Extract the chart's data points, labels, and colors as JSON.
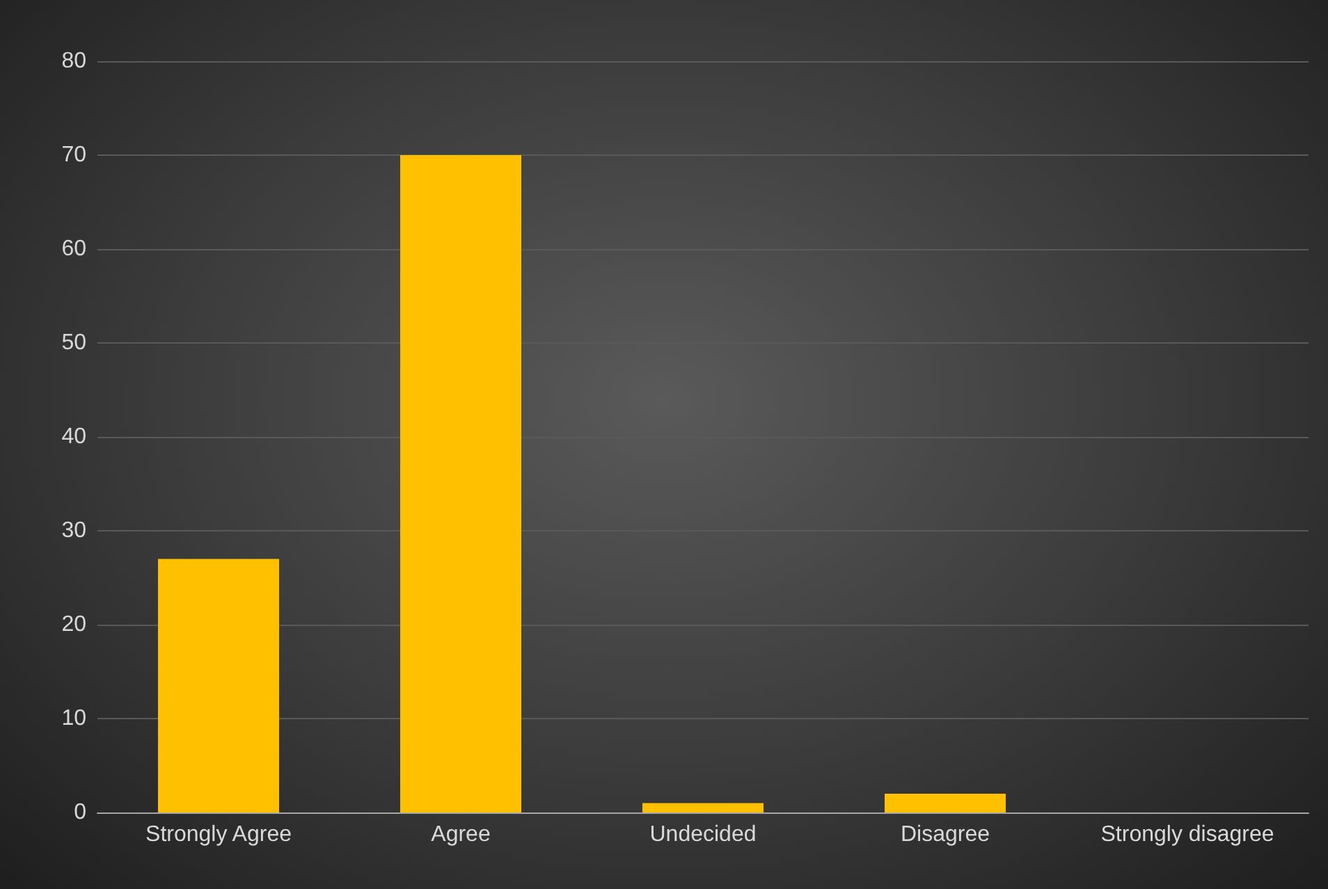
{
  "chart_data": {
    "type": "bar",
    "categories": [
      "Strongly Agree",
      "Agree",
      "Undecided",
      "Disagree",
      "Strongly disagree"
    ],
    "values": [
      27,
      70,
      1,
      2,
      0
    ],
    "color": "#ffc000",
    "ylim": [
      0,
      80
    ],
    "yticks": [
      0,
      10,
      20,
      30,
      40,
      50,
      60,
      70,
      80
    ],
    "grid": "y"
  }
}
